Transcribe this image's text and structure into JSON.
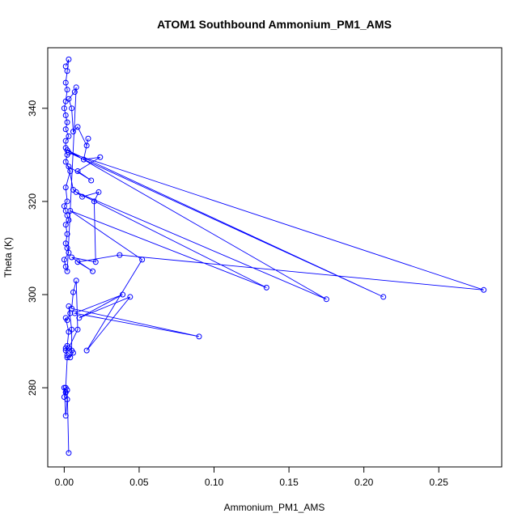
{
  "chart_data": {
    "type": "line",
    "title": "ATOM1 Southbound Ammonium_PM1_AMS",
    "xlabel": "Ammonium_PM1_AMS",
    "ylabel": "Theta (K)",
    "xlim": [
      -0.011,
      0.292
    ],
    "ylim": [
      263,
      353
    ],
    "xticks": [
      0.0,
      0.05,
      0.1,
      0.15,
      0.2,
      0.25
    ],
    "xtick_labels": [
      "0.00",
      "0.05",
      "0.10",
      "0.15",
      "0.20",
      "0.25"
    ],
    "yticks": [
      280,
      300,
      320,
      340
    ],
    "ytick_labels": [
      "280",
      "300",
      "320",
      "340"
    ],
    "grid": false,
    "legend": "none",
    "series": [
      {
        "color": "#0000ff",
        "marker": "open-circle",
        "x": [
          0.001,
          0.003,
          0.002,
          0.001,
          0.002,
          0.001,
          0.0,
          0.001,
          0.002,
          0.001,
          0.003,
          0.001,
          0.001,
          0.002,
          0.001,
          0.004,
          0.001,
          0.002,
          0.0,
          0.001,
          0.002,
          0.003,
          0.001,
          0.002,
          0.001,
          0.002,
          0.003,
          0.0,
          0.001,
          0.002,
          0.008,
          0.007,
          0.003,
          0.005,
          0.006,
          0.009,
          0.015,
          0.016,
          0.013,
          0.024,
          0.009,
          0.018,
          0.003,
          0.006,
          0.012,
          0.023,
          0.02,
          0.021,
          0.005,
          0.019,
          0.009,
          0.037,
          0.28,
          0.003,
          0.213,
          0.002,
          0.175,
          0.008,
          0.135,
          0.004,
          0.052,
          0.015,
          0.044,
          0.01,
          0.039,
          0.007,
          0.09,
          0.005,
          0.006,
          0.008,
          0.009,
          0.003,
          0.006,
          0.004,
          0.005,
          0.005,
          0.003,
          0.004,
          0.002,
          0.001,
          0.003,
          0.002,
          0.001,
          0.002,
          0.001,
          0.002,
          0.001,
          0.0,
          0.001,
          0.002,
          0.001,
          0.0,
          0.001,
          0.002,
          0.003
        ],
        "y": [
          349.0,
          350.5,
          348.0,
          345.5,
          344.0,
          341.5,
          340.0,
          338.5,
          337.0,
          335.5,
          334.0,
          333.0,
          331.5,
          330.0,
          328.5,
          326.5,
          323.0,
          320.0,
          319.0,
          318.0,
          317.0,
          316.0,
          315.0,
          313.0,
          311.0,
          310.0,
          309.0,
          307.5,
          306.0,
          305.0,
          344.5,
          343.5,
          342.0,
          340.0,
          335.0,
          336.0,
          332.0,
          333.5,
          329.0,
          329.5,
          326.5,
          324.5,
          327.5,
          322.5,
          321.0,
          322.0,
          320.0,
          307.0,
          308.0,
          305.0,
          307.0,
          308.5,
          301.0,
          330.5,
          299.5,
          331.0,
          299.0,
          322.0,
          301.5,
          318.0,
          307.5,
          288.0,
          299.5,
          295.0,
          300.0,
          296.0,
          291.0,
          297.0,
          300.5,
          303.0,
          292.5,
          288.5,
          287.5,
          286.5,
          288.0,
          292.5,
          297.5,
          296.0,
          294.5,
          295.0,
          292.0,
          289.0,
          288.0,
          287.0,
          288.5,
          286.5,
          280.0,
          278.0,
          279.0,
          277.5,
          274.0,
          280.0,
          279.0,
          279.5,
          266.0
        ]
      }
    ]
  }
}
